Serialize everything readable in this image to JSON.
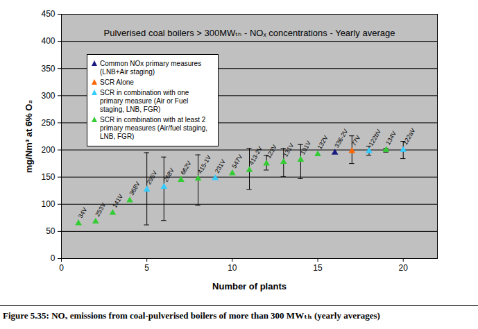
{
  "chart_data": {
    "type": "scatter",
    "title": "Pulverised coal boilers > 300MWₜₕ - NOₓ concentrations - Yearly average",
    "x_label": "Number of plants",
    "y_label": "mg/Nm³ at 6% O₂",
    "caption": "Figure 5.35:  NOₓ emissions from coal-pulverised boilers of more than 300 MWₜₕ (yearly averages)",
    "x": [
      1,
      2,
      3,
      4,
      5,
      6,
      7,
      8,
      9,
      10,
      11,
      12,
      13,
      14,
      15,
      16,
      17,
      18,
      19,
      20
    ],
    "point_labels": [
      "34V",
      "253V",
      "141V",
      "368V",
      "295V",
      "268V",
      "662V",
      "415-1V",
      "231V",
      "547V",
      "413-2V",
      "123V",
      "131V",
      "191V",
      "132V",
      "336-2V",
      "77V",
      "122bV",
      "134V",
      "122aV"
    ],
    "error_low": [
      null,
      null,
      null,
      null,
      62,
      70,
      null,
      98,
      null,
      null,
      127,
      163,
      151,
      147,
      null,
      null,
      175,
      190,
      196,
      184
    ],
    "error_high": [
      null,
      null,
      null,
      null,
      195,
      187,
      null,
      191,
      null,
      null,
      203,
      190,
      203,
      210,
      null,
      null,
      226,
      207,
      203,
      216
    ],
    "series": [
      {
        "name": "Common NOx primary measures (LNB+Air staging)",
        "color": "#1a1a80",
        "marker": "triangle",
        "values": [
          null,
          null,
          null,
          null,
          null,
          null,
          null,
          null,
          null,
          null,
          null,
          null,
          null,
          null,
          null,
          195,
          null,
          null,
          null,
          null
        ]
      },
      {
        "name": "SCR Alone",
        "color": "#ff6600",
        "marker": "triangle",
        "values": [
          null,
          null,
          null,
          null,
          null,
          null,
          null,
          null,
          null,
          null,
          null,
          null,
          null,
          null,
          null,
          null,
          198,
          null,
          null,
          null
        ]
      },
      {
        "name": "SCR in combination with one primary measure (Air or Fuel staging, LNB, FGR)",
        "color": "#33ccff",
        "marker": "triangle",
        "values": [
          null,
          null,
          null,
          null,
          127,
          132,
          null,
          null,
          148,
          null,
          null,
          null,
          null,
          null,
          null,
          null,
          null,
          198,
          null,
          200
        ]
      },
      {
        "name": "SCR in combination with at least 2 primary measures (Air/fuel staging, LNB, FGR)",
        "color": "#33cc33",
        "marker": "triangle",
        "values": [
          65,
          68,
          84,
          107,
          null,
          null,
          145,
          147,
          null,
          157,
          163,
          175,
          178,
          182,
          192,
          null,
          null,
          null,
          200,
          null
        ]
      }
    ],
    "xlim": [
      0,
      22
    ],
    "xticks": [
      0,
      5,
      10,
      15,
      20
    ],
    "ylim": [
      0,
      450
    ],
    "yticks": [
      0,
      50,
      100,
      150,
      200,
      250,
      300,
      350,
      400,
      450
    ],
    "grid": true,
    "legend": "top-left"
  }
}
